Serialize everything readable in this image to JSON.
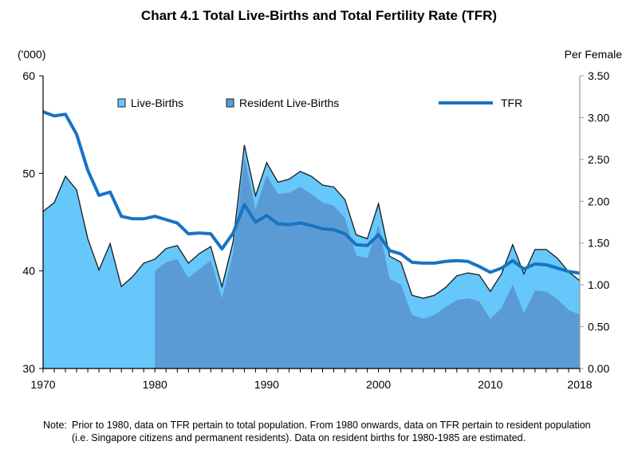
{
  "chart_data": {
    "type": "area",
    "title": "Chart 4.1  Total Live-Births and Total Fertility Rate (TFR)",
    "y_left_label": "('000)",
    "y_right_label": "Per Female",
    "ylim_left": [
      30,
      60
    ],
    "ylim_right": [
      0,
      3.5
    ],
    "xlim": [
      1970,
      2018
    ],
    "y_left_ticks": [
      "60",
      "50",
      "40",
      "30"
    ],
    "y_left_tick_values": [
      60,
      50,
      40,
      30
    ],
    "y_right_ticks": [
      "3.50",
      "3.00",
      "2.50",
      "2.00",
      "1.50",
      "1.00",
      "0.50",
      "0.00"
    ],
    "y_right_tick_values": [
      3.5,
      3.0,
      2.5,
      2.0,
      1.5,
      1.0,
      0.5,
      0.0
    ],
    "x_ticks": [
      "1970",
      "1980",
      "1990",
      "2000",
      "2010",
      "2018"
    ],
    "x_tick_values": [
      1970,
      1980,
      1990,
      2000,
      2010,
      2018
    ],
    "grid": false,
    "legend_position": "top",
    "x": [
      1970,
      1971,
      1972,
      1973,
      1974,
      1975,
      1976,
      1977,
      1978,
      1979,
      1980,
      1981,
      1982,
      1983,
      1984,
      1985,
      1986,
      1987,
      1988,
      1989,
      1990,
      1991,
      1992,
      1993,
      1994,
      1995,
      1996,
      1997,
      1998,
      1999,
      2000,
      2001,
      2002,
      2003,
      2004,
      2005,
      2006,
      2007,
      2008,
      2009,
      2010,
      2011,
      2012,
      2013,
      2014,
      2015,
      2016,
      2017,
      2018
    ],
    "series": [
      {
        "name": "Live-Births",
        "type": "area",
        "axis": "left",
        "color": "#66c7fb",
        "values": [
          46.1,
          47.0,
          49.7,
          48.3,
          43.3,
          40.1,
          42.8,
          38.4,
          39.4,
          40.8,
          41.2,
          42.3,
          42.6,
          40.8,
          41.8,
          42.5,
          38.4,
          43.0,
          52.9,
          47.7,
          51.1,
          49.1,
          49.4,
          50.2,
          49.7,
          48.8,
          48.6,
          47.3,
          43.7,
          43.3,
          46.9,
          41.5,
          40.9,
          37.5,
          37.2,
          37.5,
          38.3,
          39.5,
          39.8,
          39.6,
          37.9,
          39.7,
          42.7,
          39.7,
          42.2,
          42.2,
          41.3,
          39.9,
          39.0
        ]
      },
      {
        "name": "Resident Live-Births",
        "type": "area",
        "axis": "left",
        "color": "#5b9bd5",
        "start_year": 1980,
        "values": [
          null,
          null,
          null,
          null,
          null,
          null,
          null,
          null,
          null,
          null,
          40.0,
          40.9,
          41.2,
          39.3,
          40.2,
          41.1,
          37.2,
          41.8,
          51.7,
          46.3,
          49.8,
          47.9,
          48.0,
          48.6,
          47.9,
          47.0,
          46.7,
          45.4,
          41.6,
          41.3,
          44.7,
          39.2,
          38.6,
          35.5,
          35.1,
          35.5,
          36.3,
          37.0,
          37.2,
          36.9,
          35.1,
          36.2,
          38.6,
          35.7,
          38.0,
          37.9,
          37.1,
          36.0,
          35.5
        ]
      },
      {
        "name": "TFR",
        "type": "line",
        "axis": "right",
        "color": "#1874c2",
        "values": [
          3.07,
          3.02,
          3.04,
          2.8,
          2.37,
          2.07,
          2.11,
          1.82,
          1.79,
          1.79,
          1.82,
          1.78,
          1.74,
          1.61,
          1.62,
          1.61,
          1.43,
          1.62,
          1.96,
          1.75,
          1.83,
          1.73,
          1.72,
          1.74,
          1.71,
          1.67,
          1.66,
          1.61,
          1.48,
          1.47,
          1.6,
          1.41,
          1.37,
          1.27,
          1.26,
          1.26,
          1.28,
          1.29,
          1.28,
          1.22,
          1.15,
          1.2,
          1.29,
          1.19,
          1.25,
          1.24,
          1.2,
          1.16,
          1.14
        ]
      }
    ]
  },
  "legend": {
    "items": [
      {
        "label": "Live-Births",
        "swatch": "box",
        "color": "#66c7fb"
      },
      {
        "label": "Resident Live-Births",
        "swatch": "box",
        "color": "#5b9bd5"
      },
      {
        "label": "TFR",
        "swatch": "line",
        "color": "#1874c2"
      }
    ]
  },
  "note": {
    "label": "Note:",
    "text": "Prior to 1980, data on TFR pertain to total population. From 1980 onwards, data on TFR pertain to resident population (i.e. Singapore citizens and permanent residents). Data on resident births for 1980-1985 are estimated."
  }
}
